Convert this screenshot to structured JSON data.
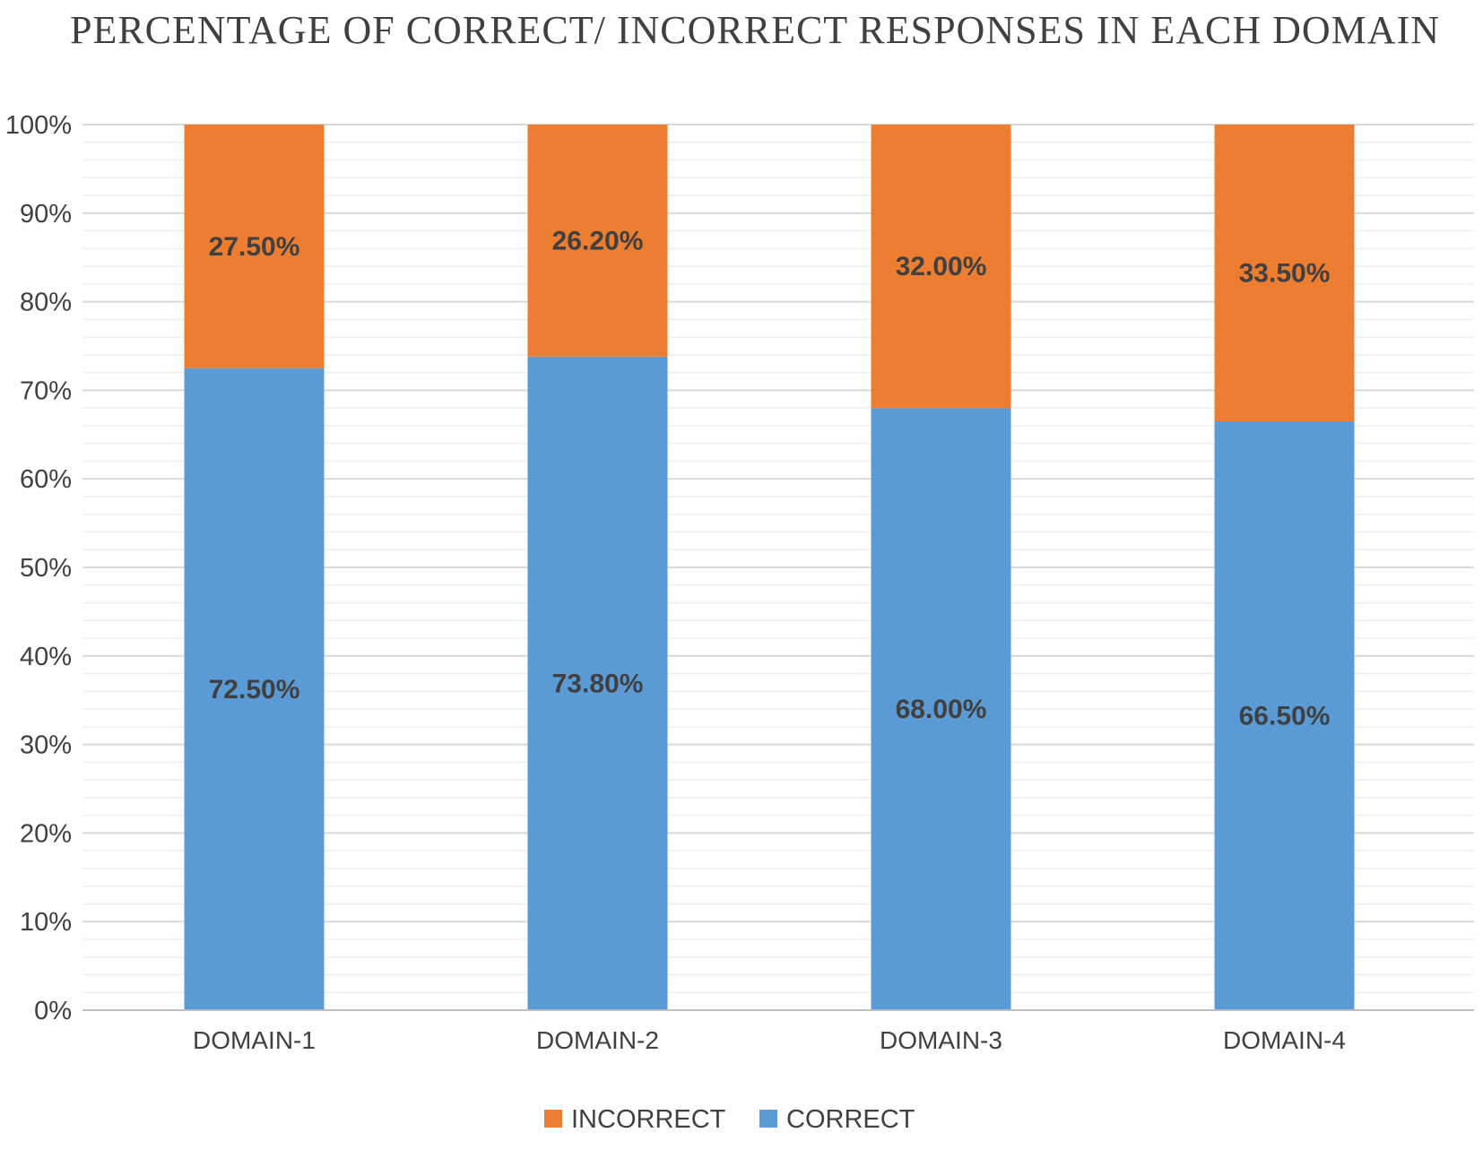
{
  "chart_data": {
    "type": "bar",
    "stacked": true,
    "title": "PERCENTAGE OF CORRECT/ INCORRECT  RESPONSES IN EACH DOMAIN",
    "categories": [
      "DOMAIN-1",
      "DOMAIN-2",
      "DOMAIN-3",
      "DOMAIN-4"
    ],
    "series": [
      {
        "name": "CORRECT",
        "color": "#5b9bd5",
        "values": [
          72.5,
          73.8,
          68.0,
          66.5
        ],
        "labels": [
          "72.50%",
          "73.80%",
          "68.00%",
          "66.50%"
        ]
      },
      {
        "name": "INCORRECT",
        "color": "#ed7d31",
        "values": [
          27.5,
          26.2,
          32.0,
          33.5
        ],
        "labels": [
          "27.50%",
          "26.20%",
          "32.00%",
          "33.50%"
        ]
      }
    ],
    "ylim": [
      0,
      100
    ],
    "yticks": [
      "0%",
      "10%",
      "20%",
      "30%",
      "40%",
      "50%",
      "60%",
      "70%",
      "80%",
      "90%",
      "100%"
    ],
    "grid": true,
    "legend_position": "bottom",
    "legend_order": [
      "INCORRECT",
      "CORRECT"
    ]
  }
}
